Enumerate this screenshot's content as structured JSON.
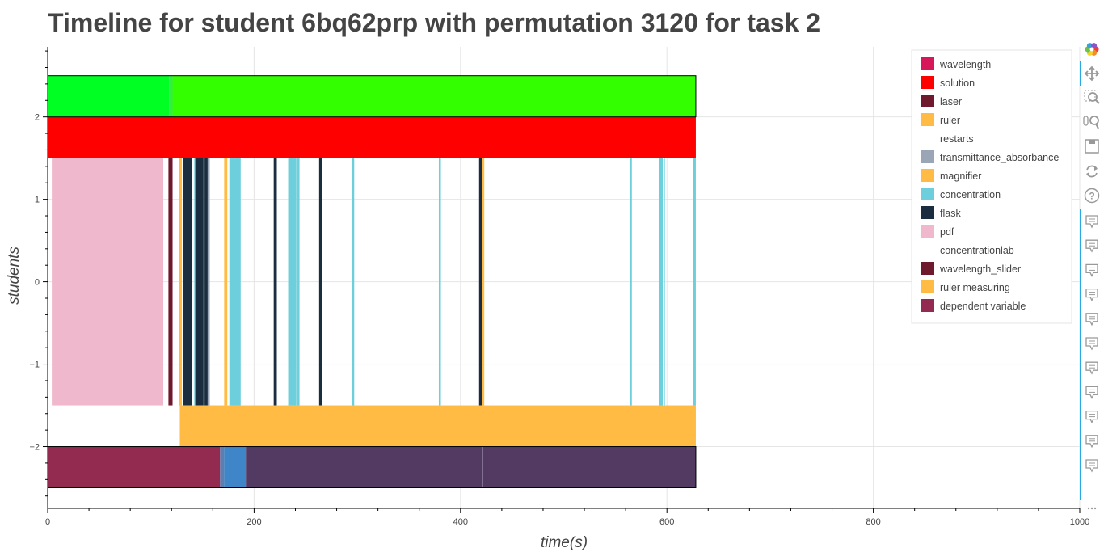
{
  "chart_data": {
    "type": "timeline",
    "title": "Timeline for student 6bq62prp with permutation 3120 for task 2",
    "xlabel": "time(s)",
    "ylabel": "students",
    "xlim": [
      0,
      1000
    ],
    "ylim": [
      -2.75,
      2.85
    ],
    "x_ticks": [
      0,
      200,
      400,
      600,
      800,
      1000
    ],
    "y_ticks": [
      -2,
      -1,
      0,
      1,
      2
    ],
    "y_tick_labels": [
      "−2",
      "−1",
      "0",
      "1",
      "2"
    ],
    "grid": true,
    "legend_position": "top-right",
    "legend": [
      {
        "name": "wavelength",
        "color": "#d6185a"
      },
      {
        "name": "solution",
        "color": "#ff0000"
      },
      {
        "name": "laser",
        "color": "#6e1a2c"
      },
      {
        "name": "ruler",
        "color": "#ffbb44"
      },
      {
        "name": "restarts",
        "color": "#ffffff"
      },
      {
        "name": "transmittance_absorbance",
        "color": "#9aa6b6"
      },
      {
        "name": "magnifier",
        "color": "#ffbb44"
      },
      {
        "name": "concentration",
        "color": "#6ecfdc"
      },
      {
        "name": "flask",
        "color": "#1b2e40"
      },
      {
        "name": "pdf",
        "color": "#efb8cc"
      },
      {
        "name": "concentrationlab",
        "color": "#ffffff"
      },
      {
        "name": "wavelength_slider",
        "color": "#6e1a2c"
      },
      {
        "name": "ruler measuring",
        "color": "#ffbb44"
      },
      {
        "name": "dependent variable",
        "color": "#932b50"
      }
    ],
    "bands": [
      {
        "y_range": [
          2.0,
          2.5
        ],
        "segments": [
          {
            "x0": 0,
            "x1": 118,
            "color": "#00ff22"
          },
          {
            "x0": 118,
            "x1": 121,
            "color": "#33ee44"
          },
          {
            "x0": 121,
            "x1": 628,
            "color": "#33ff00"
          }
        ]
      },
      {
        "y_range": [
          1.5,
          2.0
        ],
        "segments": [
          {
            "x0": 0,
            "x1": 628,
            "color": "#ff0000"
          }
        ]
      },
      {
        "y_range": [
          -1.5,
          1.5
        ],
        "segments": [
          {
            "x0": 4,
            "x1": 112,
            "color": "#efb8cc"
          },
          {
            "x0": 117,
            "x1": 121,
            "color": "#6e1a2c"
          },
          {
            "x0": 127,
            "x1": 130,
            "color": "#ffbb44"
          },
          {
            "x0": 131,
            "x1": 140,
            "color": "#1b2e40"
          },
          {
            "x0": 142,
            "x1": 143,
            "color": "#6ecfdc"
          },
          {
            "x0": 143,
            "x1": 151,
            "color": "#1b2e40"
          },
          {
            "x0": 152,
            "x1": 155,
            "color": "#1b2e40"
          },
          {
            "x0": 155,
            "x1": 157,
            "color": "#9aa6b6"
          },
          {
            "x0": 171,
            "x1": 174,
            "color": "#ffbb44"
          },
          {
            "x0": 176,
            "x1": 187,
            "color": "#6ecfdc"
          },
          {
            "x0": 219,
            "x1": 222,
            "color": "#1b2e40"
          },
          {
            "x0": 233,
            "x1": 241,
            "color": "#6ecfdc"
          },
          {
            "x0": 242,
            "x1": 244,
            "color": "#6ecfdc"
          },
          {
            "x0": 263,
            "x1": 266,
            "color": "#1b2e40"
          },
          {
            "x0": 295,
            "x1": 297,
            "color": "#6ecfdc"
          },
          {
            "x0": 379,
            "x1": 381,
            "color": "#6ecfdc"
          },
          {
            "x0": 418,
            "x1": 421,
            "color": "#1b2e40"
          },
          {
            "x0": 421,
            "x1": 423,
            "color": "#ffbb44"
          },
          {
            "x0": 564,
            "x1": 566,
            "color": "#6ecfdc"
          },
          {
            "x0": 592,
            "x1": 596,
            "color": "#6ecfdc"
          },
          {
            "x0": 597,
            "x1": 598,
            "color": "#6ecfdc"
          },
          {
            "x0": 625,
            "x1": 628,
            "color": "#6ecfdc"
          }
        ]
      },
      {
        "y_range": [
          -2.0,
          -1.5
        ],
        "segments": [
          {
            "x0": 128,
            "x1": 628,
            "color": "#ffbb44"
          }
        ]
      },
      {
        "y_range": [
          -2.5,
          -2.0
        ],
        "segments": [
          {
            "x0": 0,
            "x1": 167,
            "color": "#932b50"
          },
          {
            "x0": 167,
            "x1": 171,
            "color": "#5e7eb0"
          },
          {
            "x0": 171,
            "x1": 192,
            "color": "#3f86c8"
          },
          {
            "x0": 192,
            "x1": 421,
            "color": "#523a63"
          },
          {
            "x0": 421,
            "x1": 422,
            "color": "#7a6a8a"
          },
          {
            "x0": 422,
            "x1": 628,
            "color": "#523a63"
          }
        ]
      }
    ],
    "outlined_boxes": [
      {
        "x0": 0,
        "x1": 628,
        "y0": 2.0,
        "y1": 2.5
      },
      {
        "x0": 0,
        "x1": 628,
        "y0": -2.5,
        "y1": -2.0
      }
    ]
  },
  "toolbar": {
    "tools": [
      {
        "name": "bokeh-logo-icon"
      },
      {
        "name": "pan-icon"
      },
      {
        "name": "box-zoom-icon"
      },
      {
        "name": "wheel-zoom-icon"
      },
      {
        "name": "save-icon"
      },
      {
        "name": "reset-icon"
      },
      {
        "name": "help-icon"
      },
      {
        "name": "hover-icon"
      },
      {
        "name": "hover-icon"
      },
      {
        "name": "hover-icon"
      },
      {
        "name": "hover-icon"
      },
      {
        "name": "hover-icon"
      },
      {
        "name": "hover-icon"
      },
      {
        "name": "hover-icon"
      },
      {
        "name": "hover-icon"
      },
      {
        "name": "hover-icon"
      },
      {
        "name": "hover-icon"
      },
      {
        "name": "hover-icon"
      },
      {
        "name": "more-icon"
      }
    ],
    "active_color": "#26aae1"
  }
}
